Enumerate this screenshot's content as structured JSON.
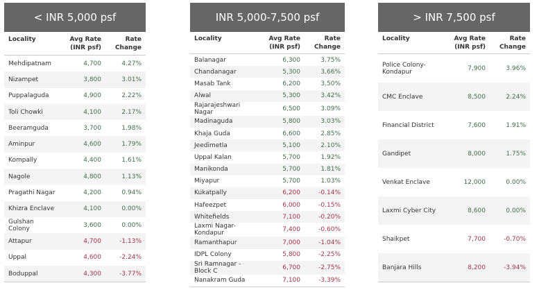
{
  "colors": {
    "header_bg": "#666666",
    "positive": "#3f6e4a",
    "negative": "#a0334a"
  },
  "columns": [
    "Locality",
    "Avg Rate (INR psf)",
    "Rate Change"
  ],
  "panels": [
    {
      "title": "< INR 5,000 psf",
      "rows": [
        [
          "Mehdipatnam",
          "4,700",
          "4.27%"
        ],
        [
          "Nizampet",
          "3,800",
          "3.01%"
        ],
        [
          "Puppalaguda",
          "4,900",
          "2.22%"
        ],
        [
          "Toli Chowki",
          "4,100",
          "2.17%"
        ],
        [
          "Beeramguda",
          "3,700",
          "1.98%"
        ],
        [
          "Aminpur",
          "4,600",
          "1.79%"
        ],
        [
          "Kompally",
          "4,400",
          "1.61%"
        ],
        [
          "Nagole",
          "4,800",
          "1.13%"
        ],
        [
          "Pragathi Nagar",
          "4,200",
          "0.94%"
        ],
        [
          "Khizra Enclave",
          "4,100",
          "0.00%"
        ],
        [
          "Gulshan Colony",
          "3,600",
          "0.00%"
        ],
        [
          "Attapur",
          "4,700",
          "-1.13%"
        ],
        [
          "Uppal",
          "4,600",
          "-2.24%"
        ],
        [
          "Boduppal",
          "4,300",
          "-3.77%"
        ]
      ]
    },
    {
      "title": "INR 5,000-7,500 psf",
      "rows": [
        [
          "Balanagar",
          "6,300",
          "3.75%"
        ],
        [
          "Chandanagar",
          "5,300",
          "3.66%"
        ],
        [
          "Masab Tank",
          "6,200",
          "3.50%"
        ],
        [
          "Alwal",
          "5,300",
          "3.42%"
        ],
        [
          "Rajarajeshwari Nagar",
          "6,500",
          "3.09%"
        ],
        [
          "Madinaguda",
          "5,800",
          "3.03%"
        ],
        [
          "Khaja Guda",
          "6,600",
          "2.85%"
        ],
        [
          "Jeedimetla",
          "5,100",
          "2.10%"
        ],
        [
          "Uppal Kalan",
          "5,700",
          "1.92%"
        ],
        [
          "Manikonda",
          "5,700",
          "1.81%"
        ],
        [
          "Miyapur",
          "5,700",
          "1.03%"
        ],
        [
          "Kukatpally",
          "6,200",
          "-0.14%"
        ],
        [
          "Hafeezpet",
          "6,000",
          "-0.15%"
        ],
        [
          "Whitefields",
          "7,100",
          "-0.20%"
        ],
        [
          "Laxmi Nagar-Kondapur",
          "7,400",
          "-0.60%"
        ],
        [
          "Ramanthapur",
          "7,000",
          "-1.04%"
        ],
        [
          "IDPL Colony",
          "5,800",
          "-2.25%"
        ],
        [
          "Sri Ramnagar - Block C",
          "6,700",
          "-2.75%"
        ],
        [
          "Nanakram Guda",
          "7,100",
          "-3.39%"
        ]
      ]
    },
    {
      "title": "> INR 7,500 psf",
      "rows": [
        [
          "Police Colony-Kondapur",
          "7,900",
          "3.96%"
        ],
        [
          "CMC Enclave",
          "8,500",
          "2.24%"
        ],
        [
          "Financial District",
          "7,600",
          "1.91%"
        ],
        [
          "Gandipet",
          "8,000",
          "1.75%"
        ],
        [
          "Venkat Enclave",
          "12,000",
          "0.00%"
        ],
        [
          "Laxmi Cyber City",
          "8,600",
          "0.00%"
        ],
        [
          "Shaikpet",
          "7,700",
          "-0.70%"
        ],
        [
          "Banjara Hills",
          "8,200",
          "-3.94%"
        ]
      ]
    }
  ]
}
